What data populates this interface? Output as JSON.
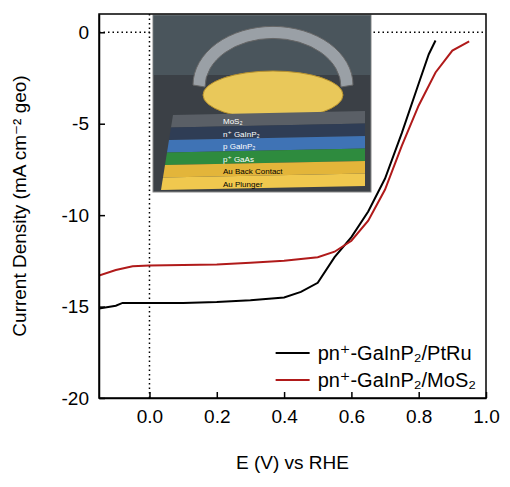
{
  "chart_data": {
    "type": "line",
    "x_label": "E (V) vs RHE",
    "y_label": "Current Density (mA cm⁻² geo)",
    "xlim": [
      -0.15,
      1.0
    ],
    "ylim": [
      -20,
      1
    ],
    "xticks": [
      {
        "value": 0,
        "label": "0.0"
      },
      {
        "value": 0.2,
        "label": "0.2"
      },
      {
        "value": 0.4,
        "label": "0.4"
      },
      {
        "value": 0.6,
        "label": "0.6"
      },
      {
        "value": 0.8,
        "label": "0.8"
      },
      {
        "value": 1,
        "label": "1.0"
      }
    ],
    "yticks": [
      -20,
      -15,
      -10,
      -5,
      0
    ],
    "reference_lines": [
      {
        "axis": "x",
        "value": 0,
        "line_style": "dotted"
      },
      {
        "axis": "y",
        "value": 0,
        "line_style": "dotted"
      }
    ],
    "legend": "lower right",
    "series": [
      {
        "name": "pn⁺-GaInP₂/PtRu",
        "color": "#000000",
        "x": [
          -0.15,
          -0.1,
          -0.08,
          -0.05,
          0,
          0.1,
          0.2,
          0.3,
          0.4,
          0.45,
          0.5,
          0.55,
          0.6,
          0.65,
          0.7,
          0.75,
          0.8,
          0.83,
          0.85
        ],
        "values": [
          -15.1,
          -14.95,
          -14.8,
          -14.8,
          -14.8,
          -14.8,
          -14.75,
          -14.65,
          -14.5,
          -14.2,
          -13.7,
          -12.3,
          -11.2,
          -9.8,
          -8.0,
          -5.5,
          -2.8,
          -1.2,
          -0.45
        ]
      },
      {
        "name": "pn⁺-GaInP₂/MoS₂",
        "color": "#b01a1a",
        "x": [
          -0.15,
          -0.1,
          -0.05,
          0,
          0.1,
          0.2,
          0.3,
          0.4,
          0.5,
          0.55,
          0.6,
          0.65,
          0.7,
          0.75,
          0.8,
          0.85,
          0.9,
          0.95
        ],
        "values": [
          -13.3,
          -13.0,
          -12.8,
          -12.75,
          -12.72,
          -12.7,
          -12.6,
          -12.5,
          -12.3,
          -12.0,
          -11.4,
          -10.3,
          -8.6,
          -6.2,
          -4.0,
          -2.2,
          -1.0,
          -0.5
        ]
      }
    ],
    "annotations": [
      "MoS₂",
      "n⁺ GaInP₂",
      "p GaInP₂",
      "p⁺ GaAs",
      "Au Back Contact",
      "Au Plunger"
    ]
  }
}
